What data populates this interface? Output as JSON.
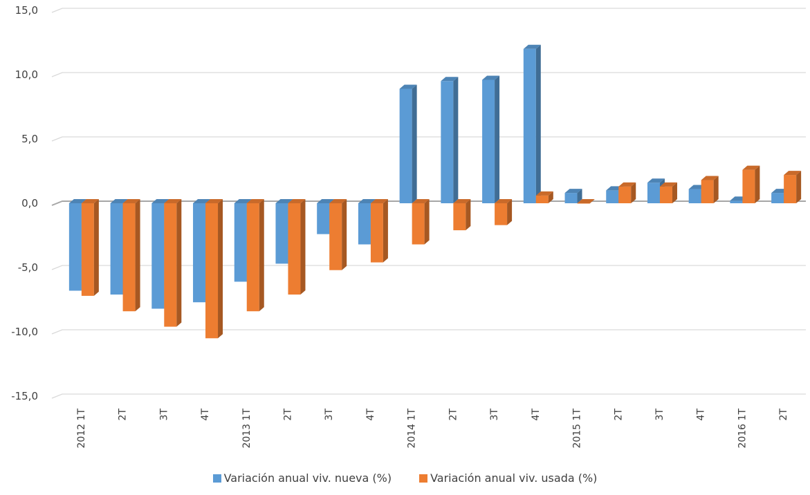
{
  "chart_data": {
    "type": "bar",
    "style": "3d-clustered-column",
    "categories": [
      "2012 1T",
      "2T",
      "3T",
      "4T",
      "2013 1T",
      "2T",
      "3T",
      "4T",
      "2014 1T",
      "2T",
      "3T",
      "4T",
      "2015 1T",
      "2T",
      "3T",
      "4T",
      "2016 1T",
      "2T"
    ],
    "series": [
      {
        "name": "Variación anual viv. nueva (%)",
        "color": "#5B9BD5",
        "values": [
          -6.8,
          -7.1,
          -8.2,
          -7.7,
          -6.1,
          -4.7,
          -2.4,
          -3.2,
          8.9,
          9.5,
          9.6,
          12.0,
          0.8,
          1.0,
          1.6,
          1.1,
          0.2,
          0.8
        ]
      },
      {
        "name": "Variación anual viv. usada (%)",
        "color": "#ED7D31",
        "values": [
          -7.2,
          -8.4,
          -9.6,
          -10.5,
          -8.4,
          -7.1,
          -5.2,
          -4.6,
          -3.2,
          -2.1,
          -1.7,
          0.6,
          0.0,
          1.3,
          1.3,
          1.8,
          2.6,
          2.2
        ]
      }
    ],
    "yticks": [
      "15,0",
      "10,0",
      "5,0",
      "0,0",
      "-5,0",
      "-10,0",
      "-15,0"
    ],
    "ylim": [
      -15,
      15
    ],
    "grid": true,
    "legend_position": "bottom"
  }
}
